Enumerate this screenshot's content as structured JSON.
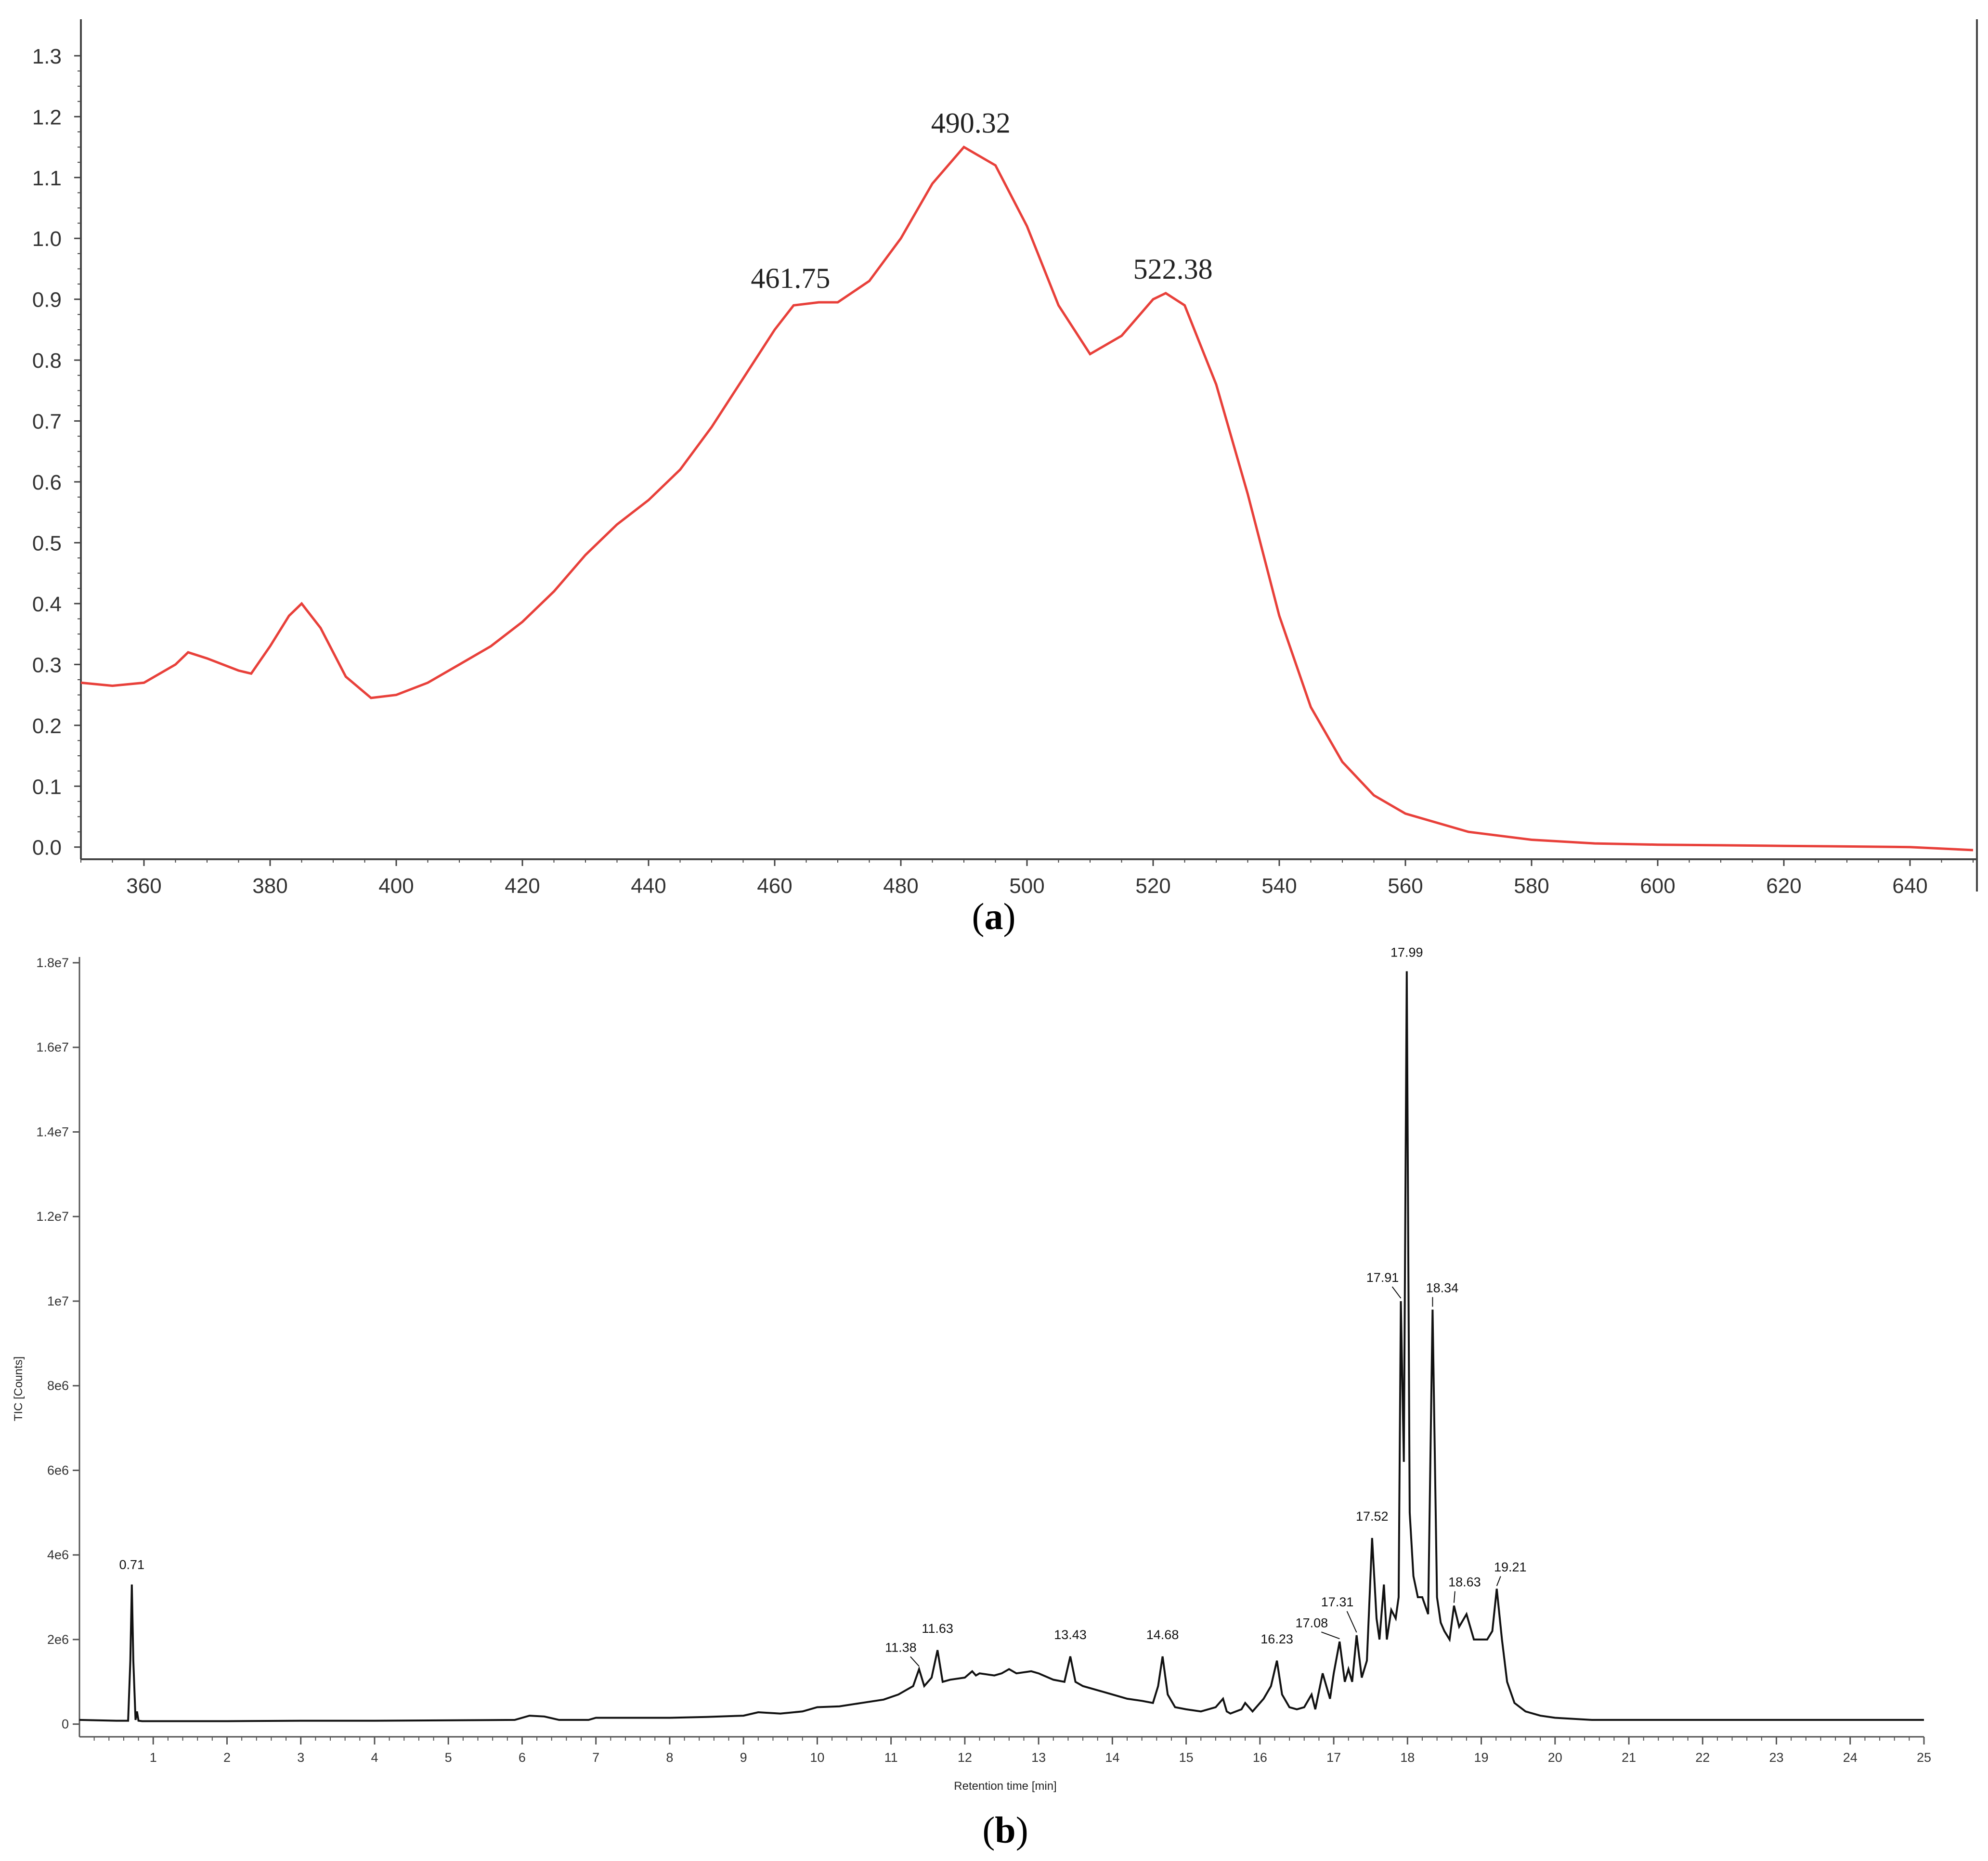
{
  "chart_data": [
    {
      "type": "line",
      "caption": "(a)",
      "caption_letter": "a",
      "xlim": [
        350,
        650
      ],
      "ylim": [
        -0.02,
        1.36
      ],
      "x_ticks": [
        "360",
        "380",
        "400",
        "420",
        "440",
        "460",
        "480",
        "500",
        "520",
        "540",
        "560",
        "580",
        "600",
        "620",
        "640"
      ],
      "y_ticks": [
        "0.0",
        "0.1",
        "0.2",
        "0.3",
        "0.4",
        "0.5",
        "0.6",
        "0.7",
        "0.8",
        "0.9",
        "1.0",
        "1.1",
        "1.2",
        "1.3"
      ],
      "line_color": "#e8403a",
      "series": [
        {
          "x": [
            350,
            355,
            360,
            365,
            367,
            370,
            375,
            377,
            380,
            383,
            385,
            388,
            392,
            396,
            400,
            405,
            410,
            415,
            420,
            425,
            430,
            435,
            440,
            445,
            450,
            455,
            460,
            463,
            467,
            470,
            475,
            480,
            485,
            490,
            495,
            500,
            505,
            510,
            515,
            520,
            522,
            525,
            530,
            535,
            540,
            545,
            550,
            555,
            560,
            570,
            580,
            590,
            600,
            610,
            620,
            630,
            640,
            650
          ],
          "y": [
            0.27,
            0.265,
            0.27,
            0.3,
            0.32,
            0.31,
            0.29,
            0.285,
            0.33,
            0.38,
            0.4,
            0.36,
            0.28,
            0.245,
            0.25,
            0.27,
            0.3,
            0.33,
            0.37,
            0.42,
            0.48,
            0.53,
            0.57,
            0.62,
            0.69,
            0.77,
            0.85,
            0.89,
            0.895,
            0.895,
            0.93,
            1.0,
            1.09,
            1.15,
            1.12,
            1.02,
            0.89,
            0.81,
            0.84,
            0.9,
            0.91,
            0.89,
            0.76,
            0.58,
            0.38,
            0.23,
            0.14,
            0.085,
            0.055,
            0.025,
            0.012,
            0.006,
            0.004,
            0.003,
            0.002,
            0.001,
            0.0,
            -0.005
          ]
        }
      ],
      "peaks": [
        {
          "x": 461.75,
          "y": 0.895,
          "label": "461.75"
        },
        {
          "x": 490.32,
          "y": 1.15,
          "label": "490.32"
        },
        {
          "x": 522.38,
          "y": 0.91,
          "label": "522.38"
        }
      ]
    },
    {
      "type": "line",
      "caption": "(b)",
      "caption_letter": "b",
      "xlabel": "Retention time [min]",
      "ylabel": "TIC [Counts]",
      "xlim": [
        0,
        25
      ],
      "ylim": [
        -300000,
        18000000
      ],
      "x_ticks": [
        "1",
        "2",
        "3",
        "4",
        "5",
        "6",
        "7",
        "8",
        "9",
        "10",
        "11",
        "12",
        "13",
        "14",
        "15",
        "16",
        "17",
        "18",
        "19",
        "20",
        "21",
        "22",
        "23",
        "24",
        "25"
      ],
      "y_ticks": [
        "0",
        "2e6",
        "4e6",
        "6e6",
        "8e6",
        "1e7",
        "1.2e7",
        "1.4e7",
        "1.6e7",
        "1.8e7"
      ],
      "y_tick_values": [
        0,
        2000000,
        4000000,
        6000000,
        8000000,
        10000000,
        12000000,
        14000000,
        16000000,
        18000000
      ],
      "line_color": "#111111",
      "series": [
        {
          "x": [
            0,
            0.5,
            0.66,
            0.69,
            0.71,
            0.73,
            0.76,
            0.78,
            0.8,
            0.85,
            1,
            2,
            3,
            4,
            5,
            5.9,
            6.1,
            6.3,
            6.5,
            6.9,
            7,
            8,
            8.5,
            9,
            9.2,
            9.5,
            9.8,
            10,
            10.3,
            10.6,
            10.9,
            11.1,
            11.2,
            11.3,
            11.38,
            11.45,
            11.5,
            11.55,
            11.63,
            11.7,
            11.8,
            12,
            12.1,
            12.15,
            12.2,
            12.4,
            12.5,
            12.6,
            12.7,
            12.9,
            13,
            13.2,
            13.35,
            13.43,
            13.5,
            13.6,
            13.8,
            14,
            14.2,
            14.4,
            14.55,
            14.62,
            14.68,
            14.75,
            14.85,
            15,
            15.2,
            15.4,
            15.5,
            15.55,
            15.6,
            15.75,
            15.8,
            15.9,
            16.05,
            16.15,
            16.23,
            16.3,
            16.4,
            16.5,
            16.6,
            16.7,
            16.75,
            16.85,
            16.95,
            17.0,
            17.08,
            17.15,
            17.2,
            17.25,
            17.31,
            17.38,
            17.45,
            17.52,
            17.58,
            17.62,
            17.68,
            17.72,
            17.78,
            17.84,
            17.88,
            17.91,
            17.95,
            17.99,
            18.03,
            18.08,
            18.14,
            18.2,
            18.28,
            18.34,
            18.4,
            18.45,
            18.5,
            18.57,
            18.63,
            18.7,
            18.8,
            18.9,
            19.0,
            19.08,
            19.15,
            19.21,
            19.28,
            19.35,
            19.45,
            19.6,
            19.8,
            20,
            20.5,
            21,
            22,
            23,
            24,
            25
          ],
          "y": [
            100000,
            80000,
            80000,
            1500000,
            3300000,
            1500000,
            100000,
            300000,
            80000,
            70000,
            70000,
            70000,
            80000,
            80000,
            90000,
            100000,
            200000,
            180000,
            100000,
            100000,
            150000,
            150000,
            170000,
            200000,
            280000,
            250000,
            300000,
            400000,
            420000,
            500000,
            580000,
            700000,
            800000,
            900000,
            1300000,
            900000,
            1000000,
            1100000,
            1750000,
            1000000,
            1050000,
            1100000,
            1250000,
            1150000,
            1200000,
            1150000,
            1200000,
            1300000,
            1200000,
            1250000,
            1200000,
            1050000,
            1000000,
            1600000,
            1000000,
            900000,
            800000,
            700000,
            600000,
            550000,
            500000,
            900000,
            1600000,
            700000,
            400000,
            350000,
            300000,
            400000,
            600000,
            300000,
            250000,
            350000,
            500000,
            300000,
            600000,
            900000,
            1500000,
            700000,
            400000,
            350000,
            400000,
            700000,
            350000,
            1200000,
            600000,
            1200000,
            1950000,
            1000000,
            1300000,
            1000000,
            2100000,
            1100000,
            1500000,
            4400000,
            2500000,
            2000000,
            3300000,
            2000000,
            2700000,
            2500000,
            3000000,
            10000000,
            6200000,
            17800000,
            5000000,
            3500000,
            3000000,
            3000000,
            2600000,
            9800000,
            3000000,
            2400000,
            2200000,
            2000000,
            2800000,
            2300000,
            2600000,
            2000000,
            2000000,
            2000000,
            2200000,
            3200000,
            2000000,
            1000000,
            500000,
            300000,
            200000,
            150000,
            100000,
            100000,
            100000,
            100000,
            100000,
            100000
          ]
        }
      ],
      "peaks": [
        {
          "x": 0.71,
          "y": 3300000,
          "label": "0.71"
        },
        {
          "x": 11.38,
          "y": 1300000,
          "label": "11.38"
        },
        {
          "x": 11.63,
          "y": 1750000,
          "label": "11.63"
        },
        {
          "x": 13.43,
          "y": 1600000,
          "label": "13.43"
        },
        {
          "x": 14.68,
          "y": 1600000,
          "label": "14.68"
        },
        {
          "x": 16.23,
          "y": 1500000,
          "label": "16.23"
        },
        {
          "x": 17.08,
          "y": 1950000,
          "label": "17.08"
        },
        {
          "x": 17.31,
          "y": 2100000,
          "label": "17.31"
        },
        {
          "x": 17.52,
          "y": 4400000,
          "label": "17.52"
        },
        {
          "x": 17.91,
          "y": 10000000,
          "label": "17.91"
        },
        {
          "x": 17.99,
          "y": 17800000,
          "label": "17.99"
        },
        {
          "x": 18.34,
          "y": 9800000,
          "label": "18.34"
        },
        {
          "x": 18.63,
          "y": 2800000,
          "label": "18.63"
        },
        {
          "x": 19.21,
          "y": 3200000,
          "label": "19.21"
        }
      ]
    }
  ]
}
